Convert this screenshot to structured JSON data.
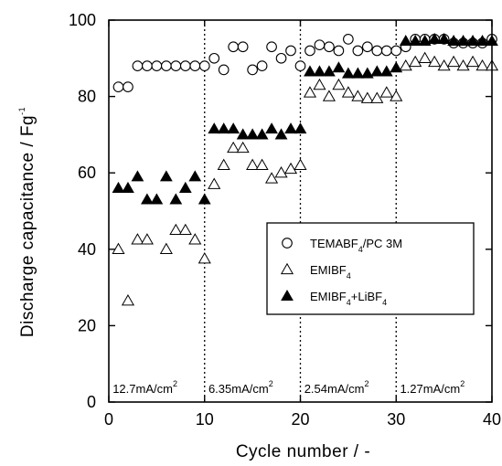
{
  "chart_data": {
    "type": "scatter",
    "xlabel": "Cycle number / -",
    "ylabel": {
      "main": "Discharge capacitance / Fg",
      "sup": "-1"
    },
    "xlim": [
      0,
      40
    ],
    "ylim": [
      0,
      100
    ],
    "xticks": [
      0,
      10,
      20,
      30,
      40
    ],
    "yticks": [
      0,
      20,
      40,
      60,
      80,
      100
    ],
    "grid": false,
    "legend_position": "lower-right",
    "dividers": [
      10,
      20,
      30
    ],
    "regions": [
      {
        "x": 0.4,
        "text": "12.7mA/cm",
        "sup": "2"
      },
      {
        "x": 10.4,
        "text": "6.35mA/cm",
        "sup": "2"
      },
      {
        "x": 20.4,
        "text": "2.54mA/cm",
        "sup": "2"
      },
      {
        "x": 30.4,
        "text": "1.27mA/cm",
        "sup": "2"
      }
    ],
    "series": [
      {
        "name": "TEMABF4/PC 3M",
        "label_parts": [
          [
            "TEMABF",
            "n"
          ],
          [
            "4",
            "sub"
          ],
          [
            "/PC 3M",
            "n"
          ]
        ],
        "marker": "circle-open",
        "color": "#000000",
        "x": [
          1,
          2,
          3,
          4,
          5,
          6,
          7,
          8,
          9,
          10,
          11,
          12,
          13,
          14,
          15,
          16,
          17,
          18,
          19,
          20,
          21,
          22,
          23,
          24,
          25,
          26,
          27,
          28,
          29,
          30,
          31,
          32,
          33,
          34,
          35,
          36,
          37,
          38,
          39,
          40
        ],
        "y": [
          82.5,
          82.5,
          88,
          88,
          88,
          88,
          88,
          88,
          88,
          88,
          90,
          87,
          93,
          93,
          87,
          88,
          93,
          90,
          92,
          88,
          92,
          93.5,
          93,
          92,
          95,
          92,
          93,
          92,
          92,
          92,
          93,
          95,
          95,
          95,
          95,
          94,
          94,
          94,
          94,
          95
        ]
      },
      {
        "name": "EMIBF4",
        "label_parts": [
          [
            "EMIBF",
            "n"
          ],
          [
            "4",
            "sub"
          ]
        ],
        "marker": "triangle-open",
        "color": "#000000",
        "x": [
          1,
          2,
          3,
          4,
          6,
          7,
          8,
          9,
          10,
          11,
          12,
          13,
          14,
          15,
          16,
          17,
          18,
          19,
          20,
          21,
          22,
          23,
          24,
          25,
          26,
          27,
          28,
          29,
          30,
          31,
          32,
          33,
          34,
          35,
          36,
          37,
          38,
          39,
          40
        ],
        "y": [
          40,
          26.5,
          42.5,
          42.5,
          40,
          45,
          45,
          42.5,
          37.5,
          57,
          62,
          66.5,
          66.5,
          62,
          62,
          58.5,
          60,
          61,
          62,
          81,
          83,
          80,
          83,
          81,
          80,
          79.5,
          79.5,
          81,
          80,
          88,
          89,
          90,
          89,
          88,
          89,
          88,
          89,
          88,
          88
        ]
      },
      {
        "name": "EMIBF4+LiBF4",
        "label_parts": [
          [
            "EMIBF",
            "n"
          ],
          [
            "4",
            "sub"
          ],
          [
            "+LiBF",
            "n"
          ],
          [
            "4",
            "sub"
          ]
        ],
        "marker": "triangle-filled",
        "color": "#000000",
        "x": [
          1,
          2,
          3,
          4,
          5,
          6,
          7,
          8,
          9,
          10,
          11,
          12,
          13,
          14,
          15,
          16,
          17,
          18,
          19,
          20,
          21,
          22,
          23,
          24,
          25,
          26,
          27,
          28,
          29,
          30,
          31,
          32,
          33,
          34,
          35,
          36,
          37,
          38,
          39,
          40
        ],
        "y": [
          56,
          56,
          59,
          53,
          53,
          59,
          53,
          56,
          59,
          53,
          71.5,
          71.5,
          71.5,
          70,
          70,
          70,
          71.5,
          70,
          71.5,
          71.5,
          86.5,
          86.5,
          86.5,
          87.5,
          86,
          86,
          86,
          86.5,
          86.5,
          87.5,
          94.5,
          94.5,
          94.5,
          95,
          95,
          94.5,
          94.5,
          94.5,
          94.5,
          94.5
        ]
      }
    ]
  }
}
